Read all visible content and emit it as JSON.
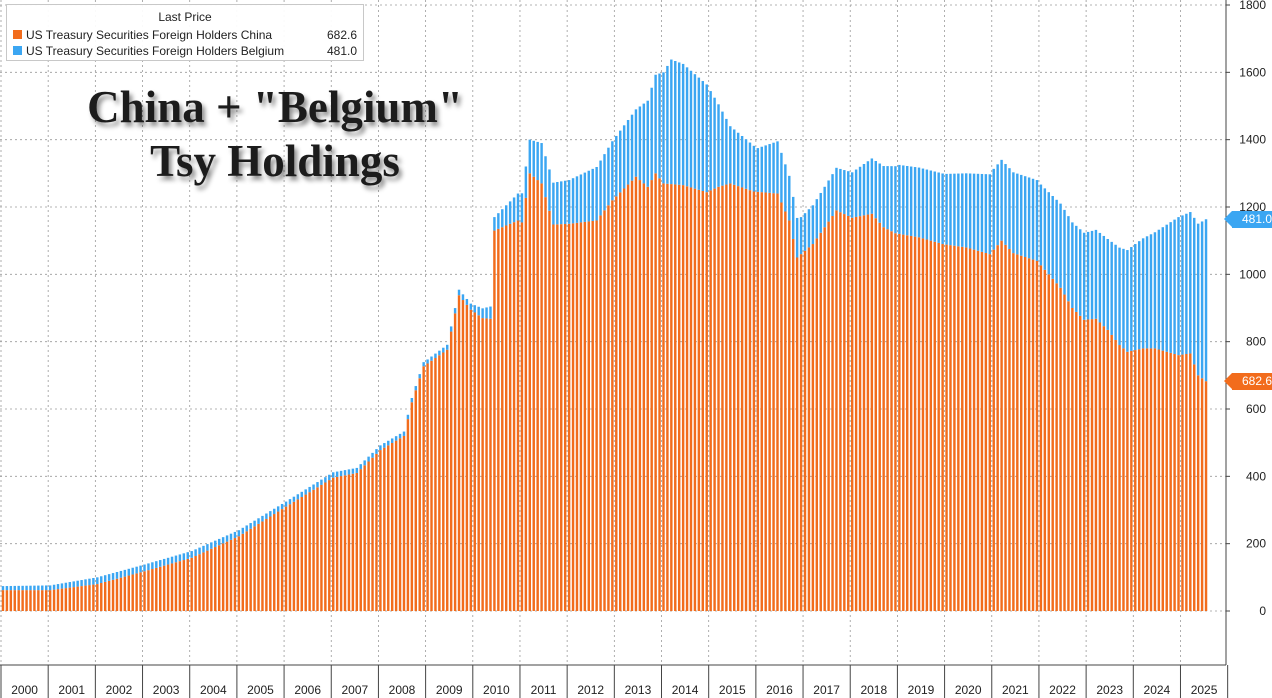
{
  "overlay_title": {
    "line1": "China + \"Belgium\"",
    "line2": "Tsy Holdings"
  },
  "legend": {
    "header": "Last Price",
    "items": [
      {
        "name": "US Treasury Securities Foreign Holders China",
        "value": "682.6",
        "color": "#f26c1c"
      },
      {
        "name": "US Treasury Securities Foreign Holders Belgium",
        "value": "481.0",
        "color": "#3ba6f2"
      }
    ]
  },
  "value_tags": {
    "china": "682.6",
    "belgium": "481.0"
  },
  "chart_data": {
    "type": "bar",
    "stacked": true,
    "frequency": "monthly",
    "start": "2000-01",
    "end": "2025-07",
    "ylim": [
      -150,
      1800
    ],
    "y_ticks": [
      0,
      200,
      400,
      600,
      800,
      1000,
      1200,
      1400,
      1600,
      1800
    ],
    "x_tick_labels": [
      "2000",
      "2001",
      "2002",
      "2003",
      "2004",
      "2005",
      "2006",
      "2007",
      "2008",
      "2009",
      "2010",
      "2011",
      "2012",
      "2013",
      "2014",
      "2015",
      "2016",
      "2017",
      "2018",
      "2019",
      "2020",
      "2021",
      "2022",
      "2023",
      "2024",
      "2025"
    ],
    "y_axis_side": "right",
    "grid": true,
    "legend_position": "top-left",
    "series": [
      {
        "name": "US Treasury Securities Foreign Holders China",
        "color": "#f26c1c",
        "last_value": 682.6,
        "anchors": [
          [
            "2000-01",
            62
          ],
          [
            "2001-01",
            62
          ],
          [
            "2002-01",
            80
          ],
          [
            "2003-01",
            118
          ],
          [
            "2004-01",
            158
          ],
          [
            "2005-01",
            222
          ],
          [
            "2006-01",
            310
          ],
          [
            "2007-01",
            396
          ],
          [
            "2007-07",
            410
          ],
          [
            "2008-01",
            478
          ],
          [
            "2008-07",
            520
          ],
          [
            "2008-09",
            620
          ],
          [
            "2008-12",
            727
          ],
          [
            "2009-06",
            776
          ],
          [
            "2009-09",
            938
          ],
          [
            "2009-12",
            895
          ],
          [
            "2010-03",
            870
          ],
          [
            "2010-05",
            868
          ],
          [
            "2010-06",
            1130
          ],
          [
            "2010-12",
            1160
          ],
          [
            "2011-01",
            1154
          ],
          [
            "2011-03",
            1300
          ],
          [
            "2011-06",
            1270
          ],
          [
            "2011-09",
            1148
          ],
          [
            "2012-01",
            1150
          ],
          [
            "2012-08",
            1160
          ],
          [
            "2012-12",
            1220
          ],
          [
            "2013-06",
            1290
          ],
          [
            "2013-09",
            1260
          ],
          [
            "2013-11",
            1300
          ],
          [
            "2014-01",
            1270
          ],
          [
            "2014-06",
            1265
          ],
          [
            "2014-12",
            1244
          ],
          [
            "2015-03",
            1260
          ],
          [
            "2015-06",
            1270
          ],
          [
            "2015-12",
            1246
          ],
          [
            "2016-06",
            1240
          ],
          [
            "2016-09",
            1160
          ],
          [
            "2016-11",
            1050
          ],
          [
            "2017-03",
            1090
          ],
          [
            "2017-06",
            1140
          ],
          [
            "2017-09",
            1190
          ],
          [
            "2018-01",
            1168
          ],
          [
            "2018-06",
            1180
          ],
          [
            "2018-09",
            1140
          ],
          [
            "2018-12",
            1122
          ],
          [
            "2019-06",
            1110
          ],
          [
            "2019-12",
            1090
          ],
          [
            "2020-06",
            1080
          ],
          [
            "2020-12",
            1060
          ],
          [
            "2021-03",
            1100
          ],
          [
            "2021-06",
            1063
          ],
          [
            "2021-12",
            1040
          ],
          [
            "2022-03",
            1000
          ],
          [
            "2022-06",
            960
          ],
          [
            "2022-09",
            900
          ],
          [
            "2022-12",
            865
          ],
          [
            "2023-03",
            868
          ],
          [
            "2023-06",
            835
          ],
          [
            "2023-09",
            790
          ],
          [
            "2023-11",
            770
          ],
          [
            "2024-03",
            780
          ],
          [
            "2024-06",
            780
          ],
          [
            "2024-09",
            770
          ],
          [
            "2024-12",
            760
          ],
          [
            "2025-03",
            765
          ],
          [
            "2025-05",
            700
          ],
          [
            "2025-07",
            682.6
          ]
        ]
      },
      {
        "name": "US Treasury Securities Foreign Holders Belgium",
        "color": "#3ba6f2",
        "last_value": 481.0,
        "anchors": [
          [
            "2000-01",
            12
          ],
          [
            "2001-01",
            14
          ],
          [
            "2002-01",
            20
          ],
          [
            "2003-01",
            20
          ],
          [
            "2004-01",
            20
          ],
          [
            "2005-01",
            18
          ],
          [
            "2006-01",
            15
          ],
          [
            "2007-01",
            16
          ],
          [
            "2008-01",
            14
          ],
          [
            "2009-01",
            12
          ],
          [
            "2009-12",
            18
          ],
          [
            "2010-06",
            40
          ],
          [
            "2011-06",
            120
          ],
          [
            "2012-01",
            130
          ],
          [
            "2013-06",
            200
          ],
          [
            "2014-01",
            330
          ],
          [
            "2014-03",
            370
          ],
          [
            "2014-06",
            360
          ],
          [
            "2014-12",
            320
          ],
          [
            "2015-06",
            170
          ],
          [
            "2016-01",
            130
          ],
          [
            "2016-06",
            155
          ],
          [
            "2016-12",
            110
          ],
          [
            "2017-06",
            120
          ],
          [
            "2018-01",
            135
          ],
          [
            "2019-01",
            205
          ],
          [
            "2020-01",
            210
          ],
          [
            "2020-06",
            220
          ],
          [
            "2021-01",
            240
          ],
          [
            "2021-06",
            240
          ],
          [
            "2022-01",
            240
          ],
          [
            "2022-06",
            250
          ],
          [
            "2023-01",
            260
          ],
          [
            "2023-06",
            270
          ],
          [
            "2024-01",
            315
          ],
          [
            "2024-06",
            345
          ],
          [
            "2024-12",
            410
          ],
          [
            "2025-03",
            420
          ],
          [
            "2025-07",
            481.0
          ]
        ]
      }
    ]
  }
}
